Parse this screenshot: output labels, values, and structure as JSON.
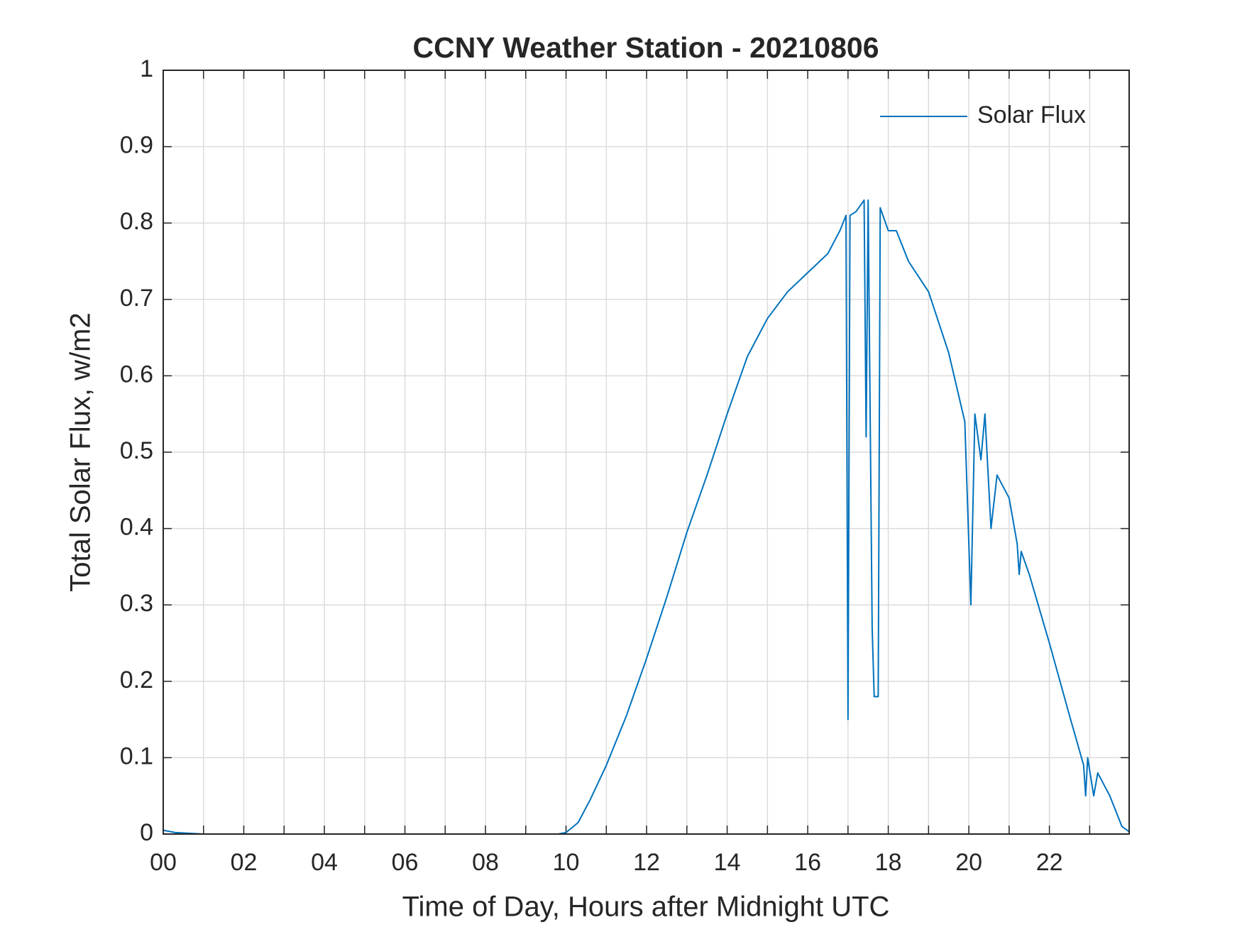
{
  "chart_data": {
    "type": "line",
    "title": "CCNY Weather Station - 20210806",
    "xlabel": "Time of Day, Hours after Midnight UTC",
    "ylabel": "Total Solar Flux, w/m2",
    "x": [
      0,
      0.3,
      1,
      3,
      5,
      7,
      9,
      9.8,
      10,
      10.3,
      10.6,
      11,
      11.5,
      12,
      12.5,
      13,
      13.5,
      14,
      14.5,
      15,
      15.5,
      16,
      16.5,
      16.8,
      16.95,
      17.0,
      17.05,
      17.2,
      17.4,
      17.45,
      17.5,
      17.6,
      17.65,
      17.75,
      17.8,
      18,
      18.2,
      18.5,
      19,
      19.5,
      19.9,
      20.05,
      20.15,
      20.3,
      20.4,
      20.55,
      20.7,
      21,
      21.2,
      21.25,
      21.3,
      21.5,
      22,
      22.5,
      22.85,
      22.9,
      22.95,
      23.1,
      23.2,
      23.5,
      23.8,
      23.98
    ],
    "series": [
      {
        "name": "Solar Flux",
        "color": "#0072BD",
        "values": [
          0.005,
          0.002,
          0,
          0,
          0,
          0,
          0,
          0,
          0.002,
          0.015,
          0.045,
          0.09,
          0.155,
          0.23,
          0.31,
          0.395,
          0.47,
          0.55,
          0.625,
          0.675,
          0.71,
          0.735,
          0.76,
          0.79,
          0.81,
          0.15,
          0.81,
          0.815,
          0.83,
          0.52,
          0.83,
          0.27,
          0.18,
          0.18,
          0.82,
          0.79,
          0.79,
          0.75,
          0.71,
          0.63,
          0.54,
          0.3,
          0.55,
          0.49,
          0.55,
          0.4,
          0.47,
          0.44,
          0.38,
          0.34,
          0.37,
          0.34,
          0.25,
          0.155,
          0.09,
          0.05,
          0.1,
          0.05,
          0.08,
          0.05,
          0.01,
          0.003
        ]
      }
    ],
    "xlim": [
      0,
      23.98
    ],
    "xticks": [
      {
        "value": 0,
        "label": "00"
      },
      {
        "value": 2,
        "label": "02"
      },
      {
        "value": 4,
        "label": "04"
      },
      {
        "value": 6,
        "label": "06"
      },
      {
        "value": 8,
        "label": "08"
      },
      10,
      12,
      14,
      16,
      18,
      20,
      22
    ],
    "xminorticks": [
      1,
      3,
      5,
      7,
      9,
      11,
      13,
      15,
      17,
      19,
      21,
      23
    ],
    "ylim": [
      0,
      1
    ],
    "yticks": [
      0,
      0.1,
      0.2,
      0.3,
      0.4,
      0.5,
      0.6,
      0.7,
      0.8,
      0.9,
      1
    ],
    "grid": true,
    "legend": "northeast"
  }
}
